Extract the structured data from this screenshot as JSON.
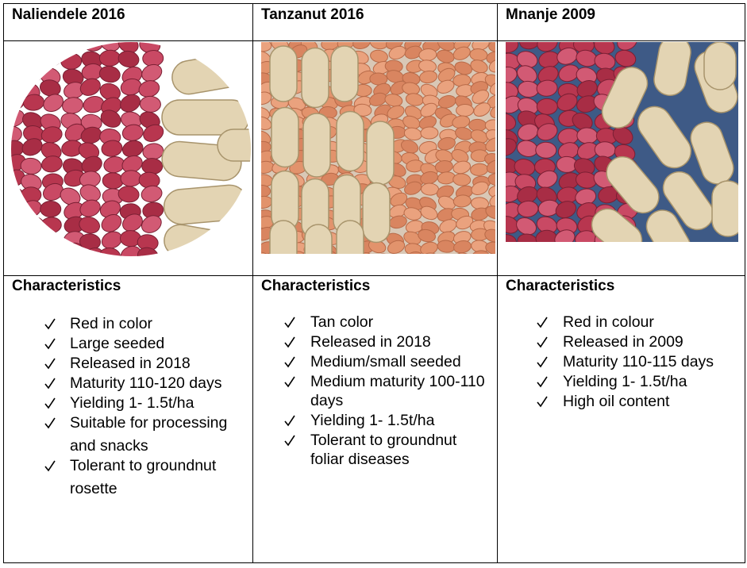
{
  "columns": [
    {
      "title": "Naliendele 2016",
      "heading": "Characteristics",
      "items": [
        "Red in color",
        "Large seeded",
        "Released in 2018",
        "Maturity 110-120 days",
        "Yielding 1- 1.5t/ha",
        "Suitable for processing and snacks",
        "Tolerant to groundnut rosette"
      ]
    },
    {
      "title": "Tanzanut 2016",
      "heading": "Characteristics",
      "items": [
        "Tan color",
        "Released in 2018",
        "Medium/small seeded",
        "Medium maturity 100-110 days",
        "Yielding 1- 1.5t/ha",
        "Tolerant to groundnut foliar diseases"
      ]
    },
    {
      "title": "Mnanje 2009",
      "heading": "Characteristics",
      "items": [
        "Red in colour",
        "Released in 2009",
        "Maturity 110-115 days",
        "Yielding 1- 1.5t/ha",
        "High oil content"
      ]
    }
  ]
}
